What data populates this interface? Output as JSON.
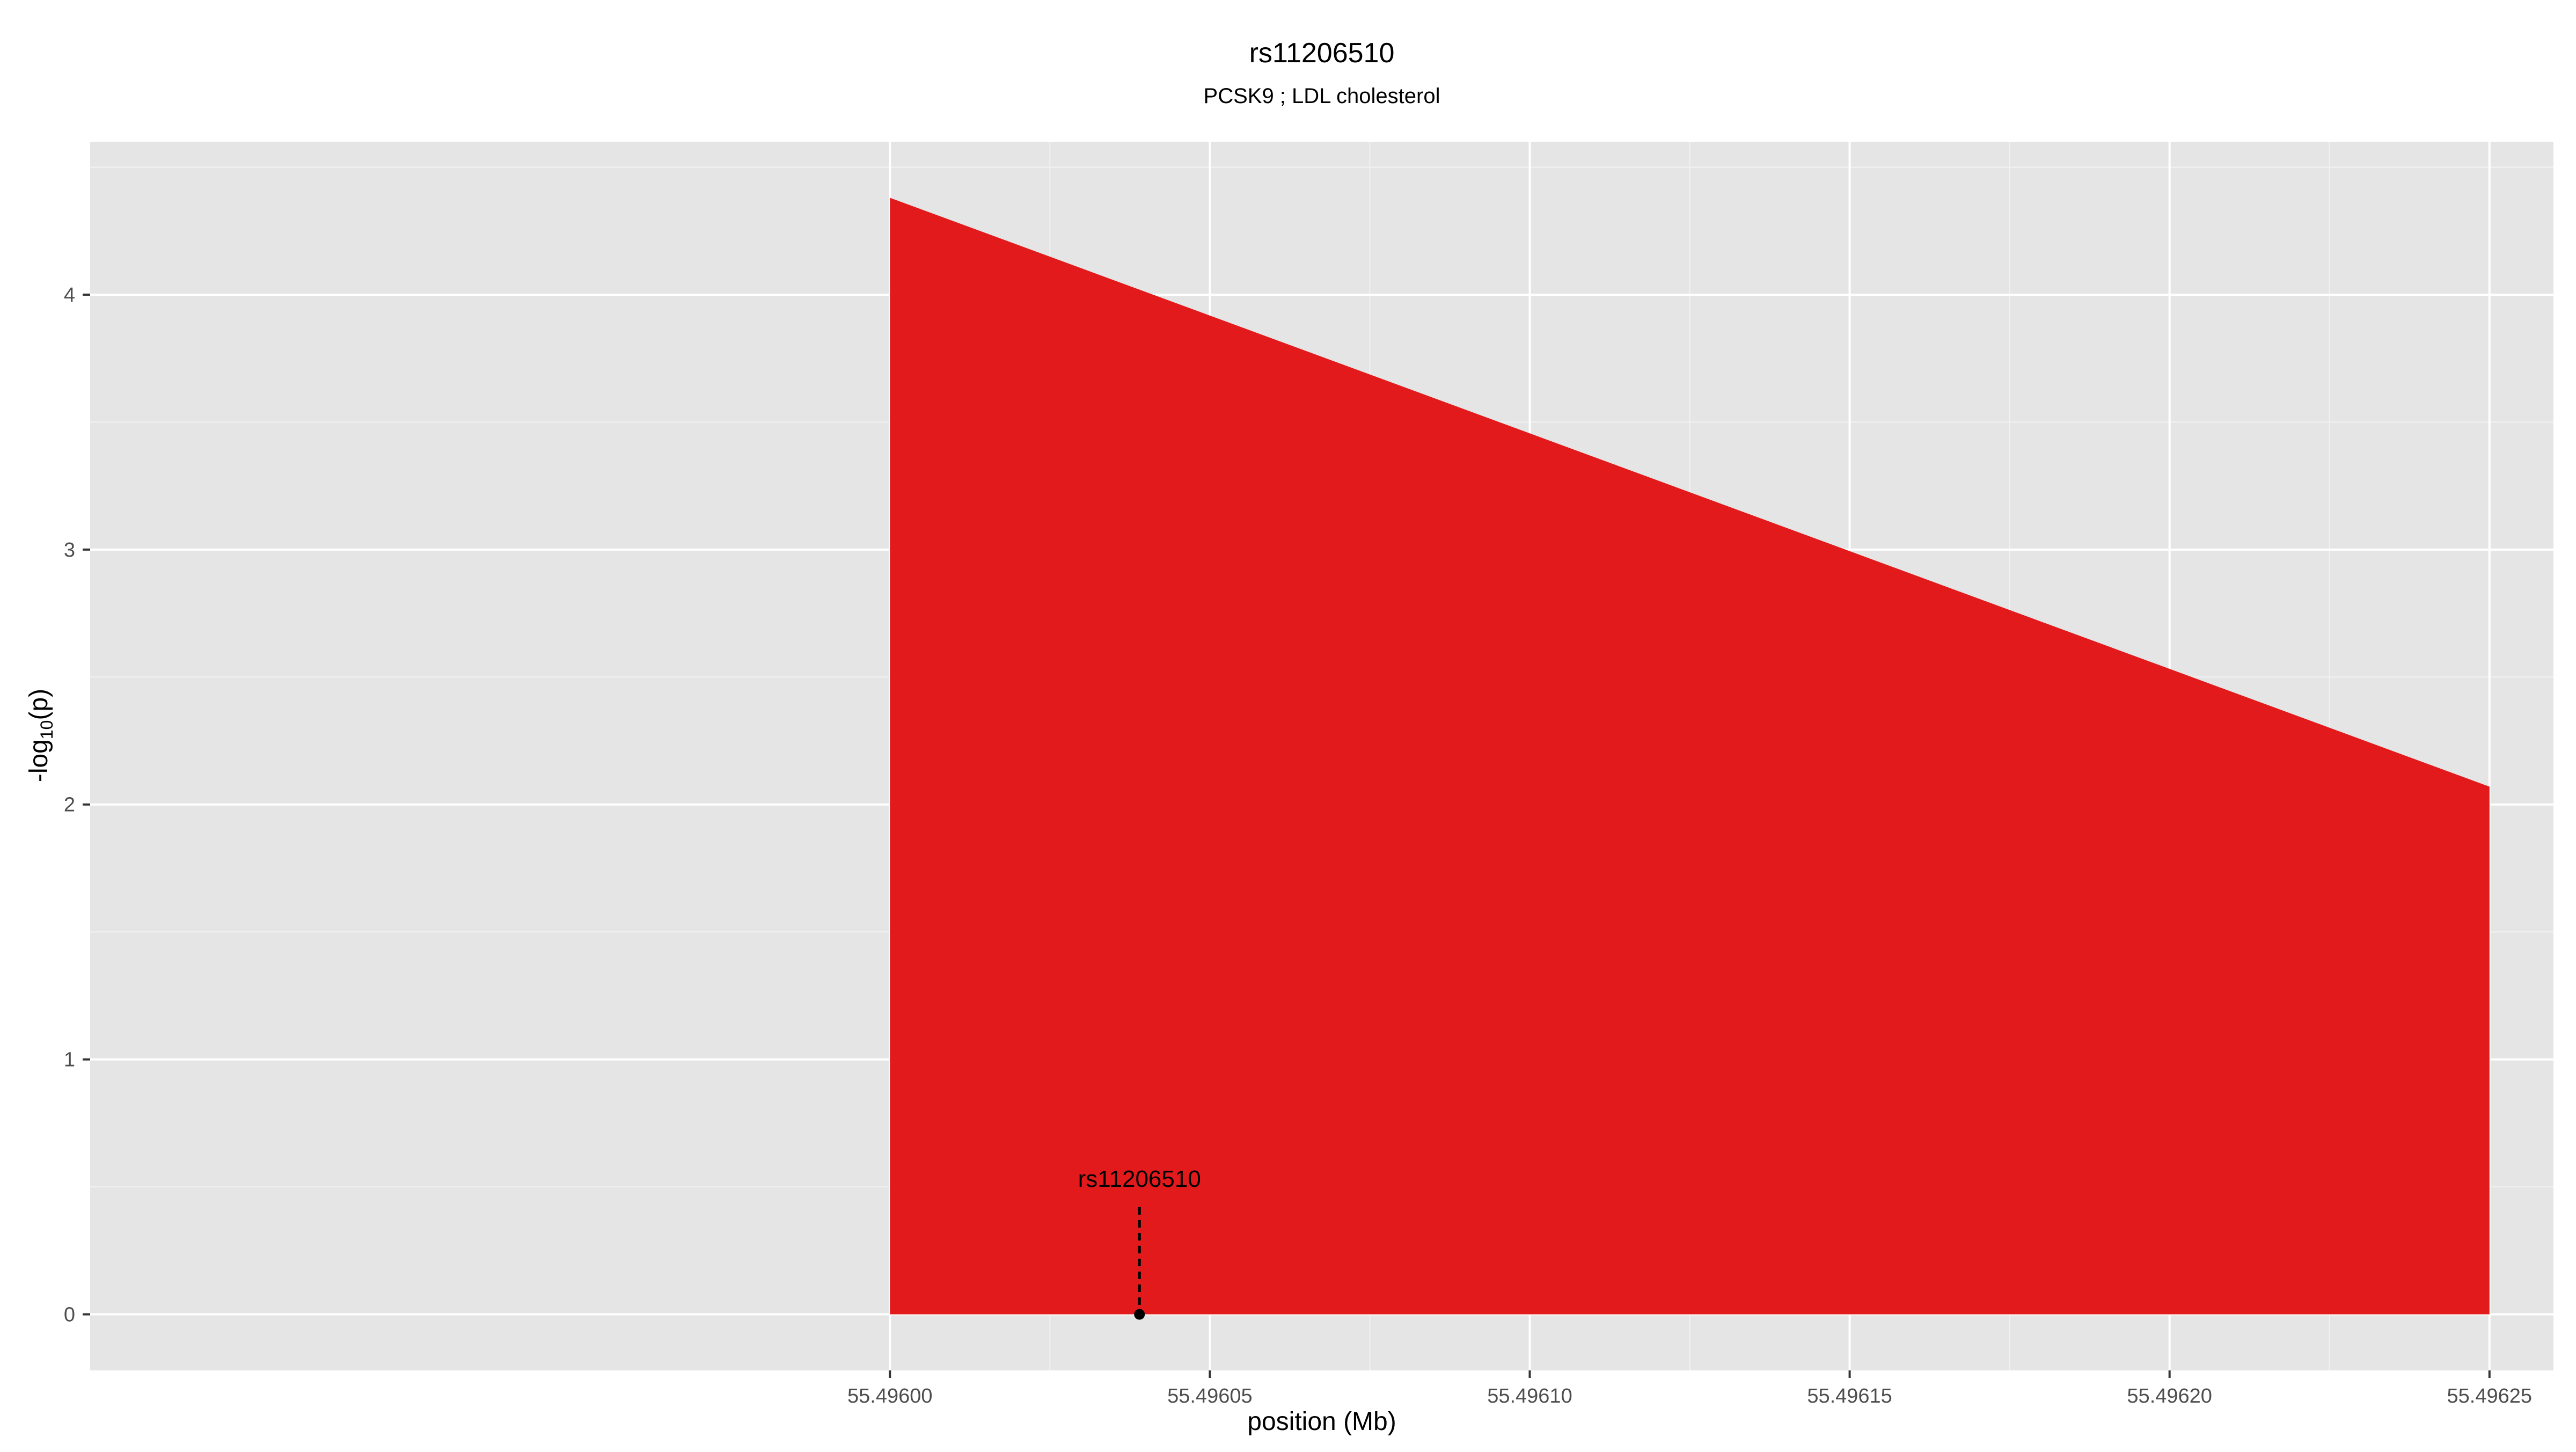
{
  "chart_data": {
    "type": "area",
    "title": "rs11206510",
    "subtitle": "PCSK9 ; LDL cholesterol",
    "xlabel": "position (Mb)",
    "ylabel_main": "-log",
    "ylabel_sub": "10",
    "ylabel_tail": "(p)",
    "xlim": [
      55.495875,
      55.49626
    ],
    "ylim": [
      -0.22,
      4.6
    ],
    "x_ticks": [
      55.496,
      55.49605,
      55.4961,
      55.49615,
      55.4962,
      55.49625
    ],
    "x_tick_labels": [
      "55.49600",
      "55.49605",
      "55.49610",
      "55.49615",
      "55.49620",
      "55.49625"
    ],
    "y_ticks": [
      0,
      1,
      2,
      3,
      4
    ],
    "y_tick_labels": [
      "0",
      "1",
      "2",
      "3",
      "4"
    ],
    "grid": true,
    "series": [
      {
        "x": [
          55.496,
          55.49625
        ],
        "y": [
          4.38,
          2.07
        ],
        "color": "#e31a1c"
      }
    ],
    "annotation": {
      "label": "rs11206510",
      "x": 55.496039,
      "y": 0,
      "label_y": 0.53
    },
    "colors": {
      "panel_bg": "#e5e5e5",
      "grid_major": "#ffffff",
      "fill": "#e31a1c",
      "tick_text": "#4d4d4d",
      "text": "#000000"
    }
  }
}
